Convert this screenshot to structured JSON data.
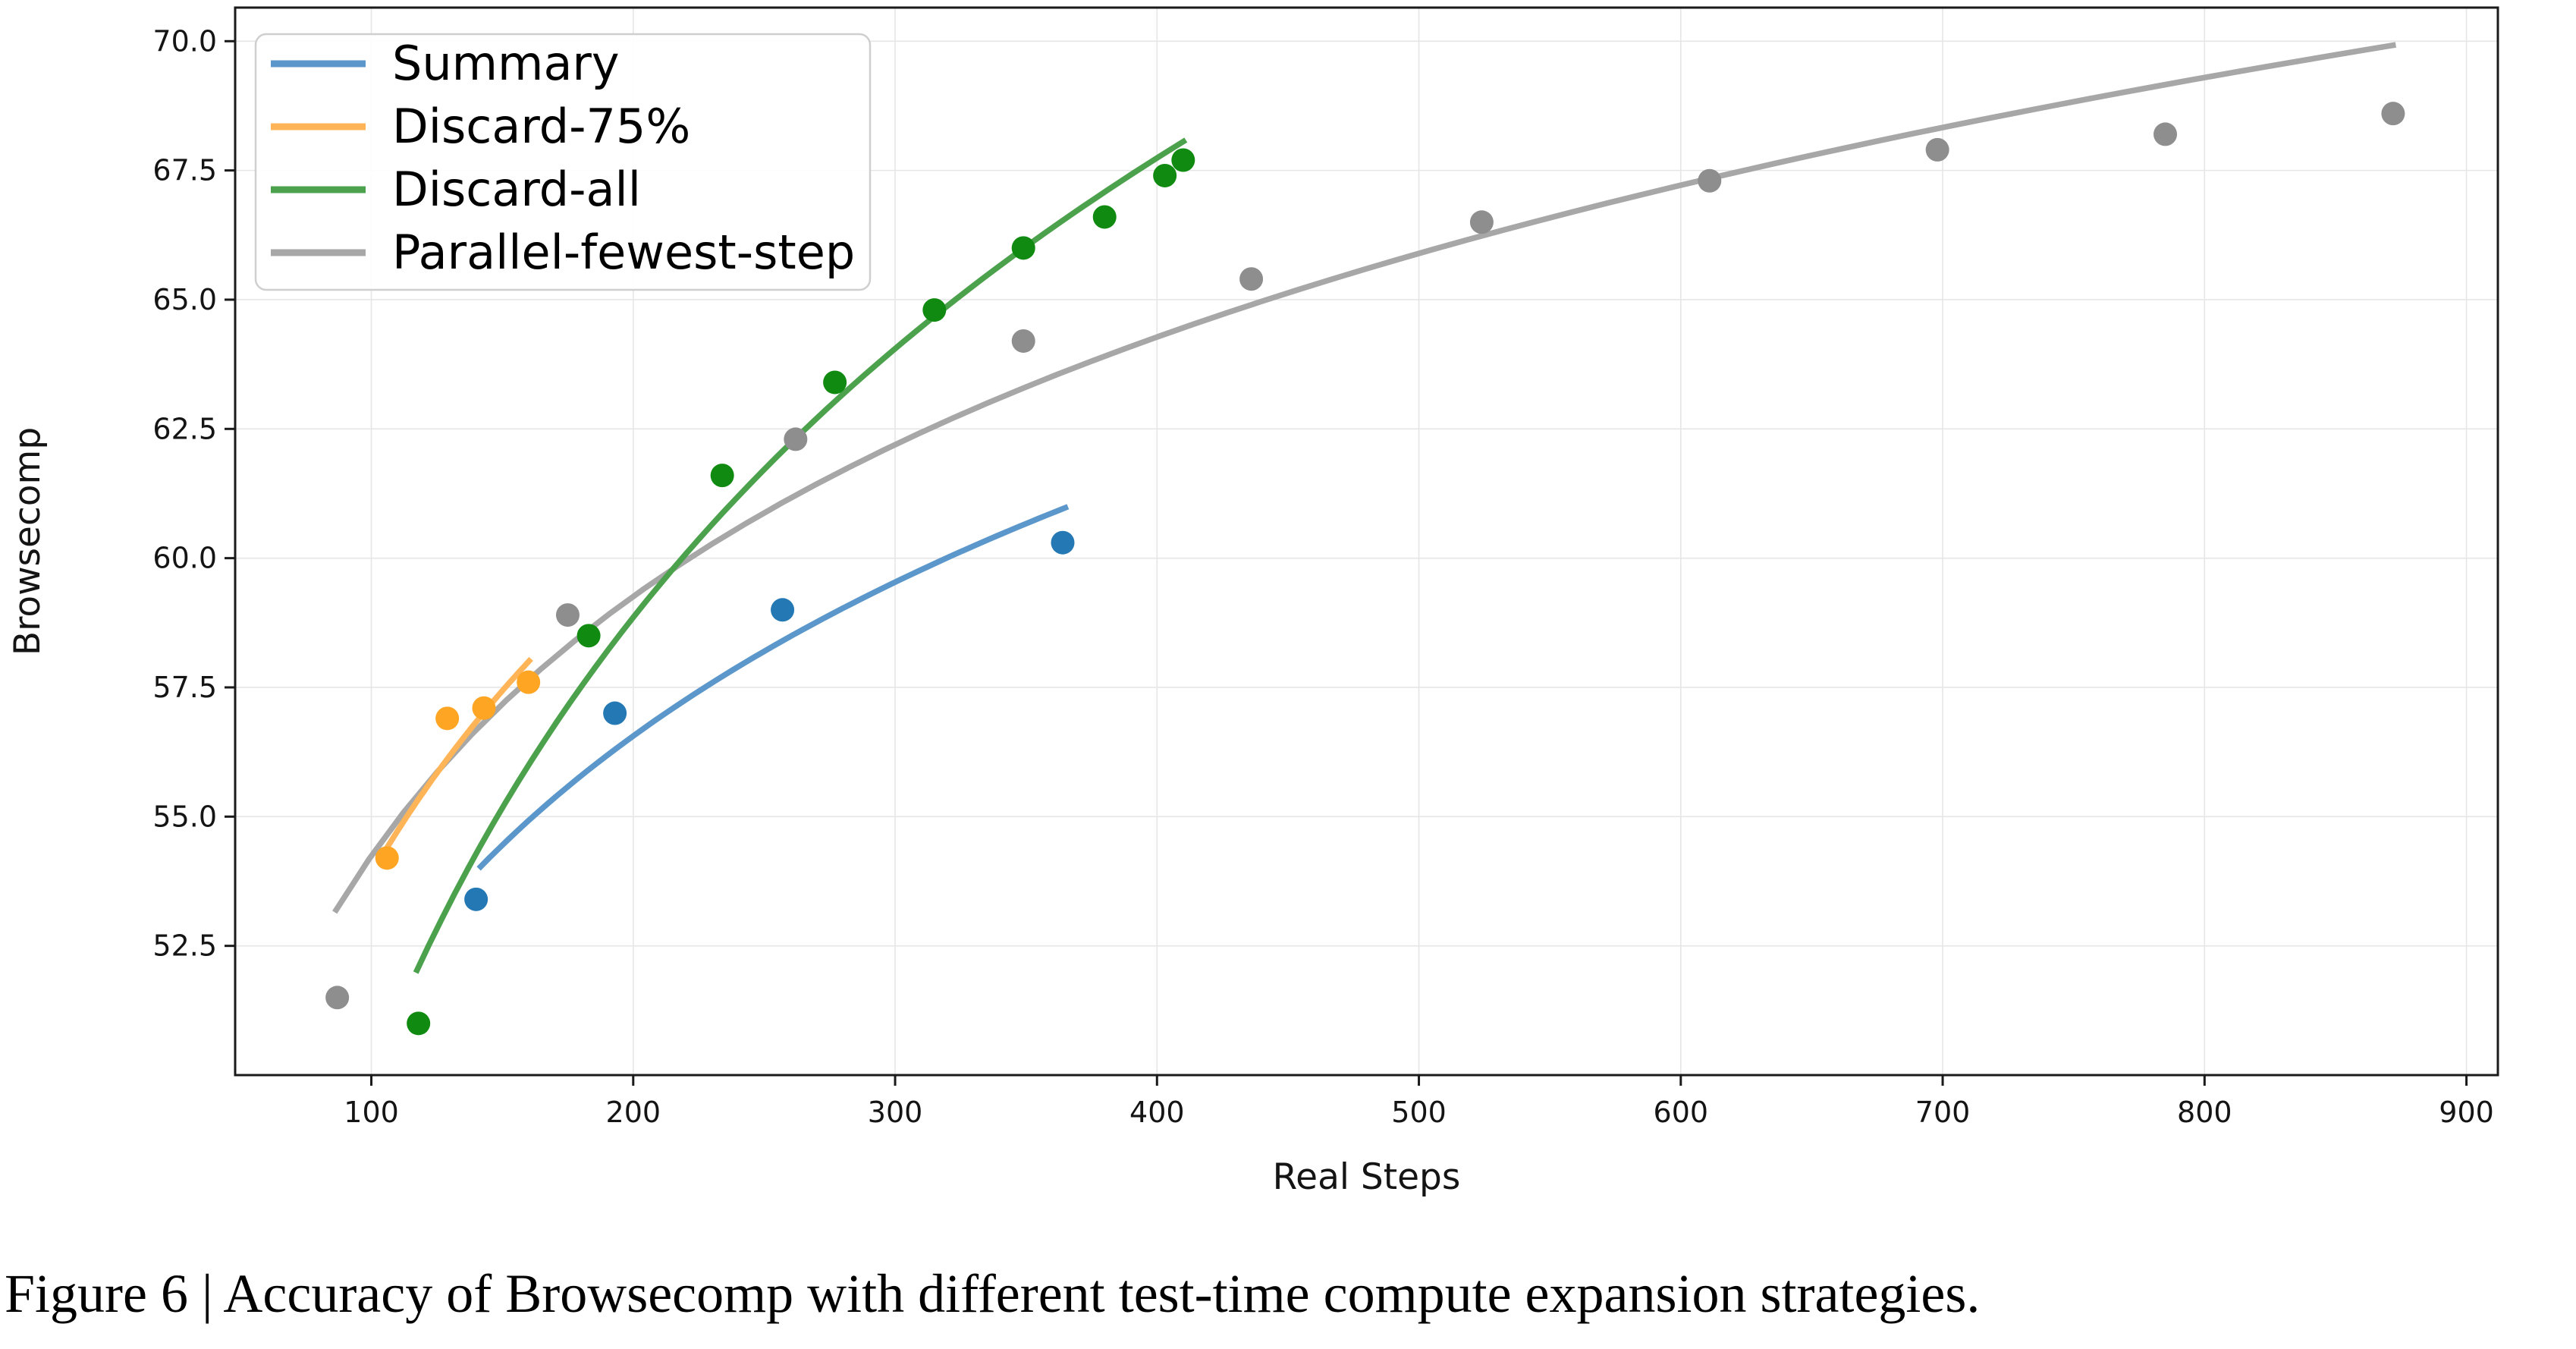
{
  "caption": "Figure 6 | Accuracy of Browsecomp with different test-time compute expansion strategies.",
  "chart_data": {
    "type": "scatter",
    "title": "",
    "xlabel": "Real Steps",
    "ylabel": "Browsecomp",
    "xlim": [
      48,
      912
    ],
    "ylim": [
      50.0,
      70.65
    ],
    "xticks": [
      100,
      200,
      300,
      400,
      500,
      600,
      700,
      800,
      900
    ],
    "yticks": [
      52.5,
      55.0,
      57.5,
      60.0,
      62.5,
      65.0,
      67.5,
      70.0
    ],
    "grid": true,
    "grid_color": "#e6e6e6",
    "spine_color": "#1a1a1a",
    "text_color": "#141414",
    "legend_position": "upper-left",
    "series": [
      {
        "name": "Summary",
        "dot_color": "#2478b4",
        "line_color": "#5b97cb",
        "points": [
          [
            140,
            53.4
          ],
          [
            193,
            57.0
          ],
          [
            257,
            59.0
          ],
          [
            364,
            60.3
          ]
        ],
        "trend": {
          "type": "log",
          "a": 17.67,
          "b": 7.34,
          "x_range": [
            141,
            366
          ]
        }
      },
      {
        "name": "Discard-75%",
        "dot_color": "#ffa524",
        "line_color": "#ffb557",
        "points": [
          [
            106,
            54.2
          ],
          [
            129,
            56.9
          ],
          [
            143,
            57.1
          ],
          [
            160,
            57.6
          ]
        ],
        "trend": {
          "type": "log",
          "a": 13.64,
          "b": 8.74,
          "x_range": [
            105,
            161
          ]
        }
      },
      {
        "name": "Discard-all",
        "dot_color": "#108a10",
        "line_color": "#4ca14c",
        "points": [
          [
            118,
            51.0
          ],
          [
            183,
            58.5
          ],
          [
            234,
            61.6
          ],
          [
            277,
            63.4
          ],
          [
            315,
            64.8
          ],
          [
            349,
            66.0
          ],
          [
            380,
            66.6
          ],
          [
            403,
            67.4
          ],
          [
            410,
            67.7
          ]
        ],
        "trend": {
          "type": "log",
          "a": -9.07,
          "b": 12.82,
          "x_range": [
            117,
            411
          ]
        }
      },
      {
        "name": "Parallel-fewest-step",
        "dot_color": "#8e8e8e",
        "line_color": "#a7a7a7",
        "points": [
          [
            87,
            51.5
          ],
          [
            175,
            58.9
          ],
          [
            262,
            62.3
          ],
          [
            349,
            64.2
          ],
          [
            436,
            65.4
          ],
          [
            524,
            66.5
          ],
          [
            611,
            67.3
          ],
          [
            698,
            67.9
          ],
          [
            785,
            68.2
          ],
          [
            872,
            68.6
          ]
        ],
        "trend": {
          "type": "log",
          "a": 20.9,
          "b": 7.24,
          "x_range": [
            86,
            873
          ]
        }
      }
    ]
  }
}
